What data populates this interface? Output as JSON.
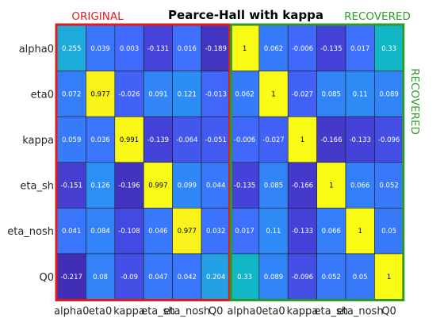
{
  "chart_data": {
    "type": "heatmap",
    "title": "Pearce-Hall with kappa",
    "left_label": "ORIGINAL",
    "right_label_top": "RECOVERED",
    "right_label_side": "RECOVERED",
    "row_labels": [
      "alpha0",
      "eta0",
      "kappa",
      "eta_sh",
      "eta_nosh",
      "Q0"
    ],
    "col_labels": [
      "alpha0",
      "eta0",
      "kappa",
      "eta_sh",
      "eta_nosh",
      "Q0",
      "alpha0",
      "eta0",
      "kappa",
      "eta_sh",
      "eta_nosh",
      "Q0"
    ],
    "values": [
      [
        0.255,
        0.039,
        0.003,
        -0.131,
        0.016,
        -0.189,
        1,
        0.062,
        -0.006,
        -0.135,
        0.017,
        0.33
      ],
      [
        0.072,
        0.977,
        -0.026,
        0.091,
        0.121,
        -0.013,
        0.062,
        1,
        -0.027,
        0.085,
        0.11,
        0.089
      ],
      [
        0.059,
        0.036,
        0.991,
        -0.139,
        -0.064,
        -0.051,
        -0.006,
        -0.027,
        1,
        -0.166,
        -0.133,
        -0.096
      ],
      [
        -0.151,
        0.126,
        -0.196,
        0.997,
        0.099,
        0.044,
        -0.135,
        0.085,
        -0.166,
        1,
        0.066,
        0.052
      ],
      [
        0.041,
        0.084,
        -0.108,
        0.046,
        0.977,
        0.032,
        0.017,
        0.11,
        -0.133,
        0.066,
        1,
        0.05
      ],
      [
        -0.217,
        0.08,
        -0.09,
        0.047,
        0.042,
        0.204,
        0.33,
        0.089,
        -0.096,
        0.052,
        0.05,
        1
      ]
    ],
    "cell_text": [
      [
        "0.255",
        "0.039",
        "0.003",
        "-0.131",
        "0.016",
        "-0.189",
        "1",
        "0.062",
        "-0.006",
        "-0.135",
        "0.017",
        "0.33"
      ],
      [
        "0.072",
        "0.977",
        "-0.026",
        "0.091",
        "0.121",
        "-0.013",
        "0.062",
        "1",
        "-0.027",
        "0.085",
        "0.11",
        "0.089"
      ],
      [
        "0.059",
        "0.036",
        "0.991",
        "-0.139",
        "-0.064",
        "-0.051",
        "-0.006",
        "-0.027",
        "1",
        "-0.166",
        "-0.133",
        "-0.096"
      ],
      [
        "-0.151",
        "0.126",
        "-0.196",
        "0.997",
        "0.099",
        "0.044",
        "-0.135",
        "0.085",
        "-0.166",
        "1",
        "0.066",
        "0.052"
      ],
      [
        "0.041",
        "0.084",
        "-0.108",
        "0.046",
        "0.977",
        "0.032",
        "0.017",
        "0.11",
        "-0.133",
        "0.066",
        "1",
        "0.05"
      ],
      [
        "-0.217",
        "0.08",
        "-0.09",
        "0.047",
        "0.042",
        "0.204",
        "0.33",
        "0.089",
        "-0.096",
        "0.052",
        "0.05",
        "1"
      ]
    ],
    "colormap": "parula",
    "color_range": [
      -0.25,
      1
    ],
    "colors": {
      "original_border": "#e41a1c",
      "recovered_border": "#2e9b26",
      "title": "#000000"
    }
  }
}
